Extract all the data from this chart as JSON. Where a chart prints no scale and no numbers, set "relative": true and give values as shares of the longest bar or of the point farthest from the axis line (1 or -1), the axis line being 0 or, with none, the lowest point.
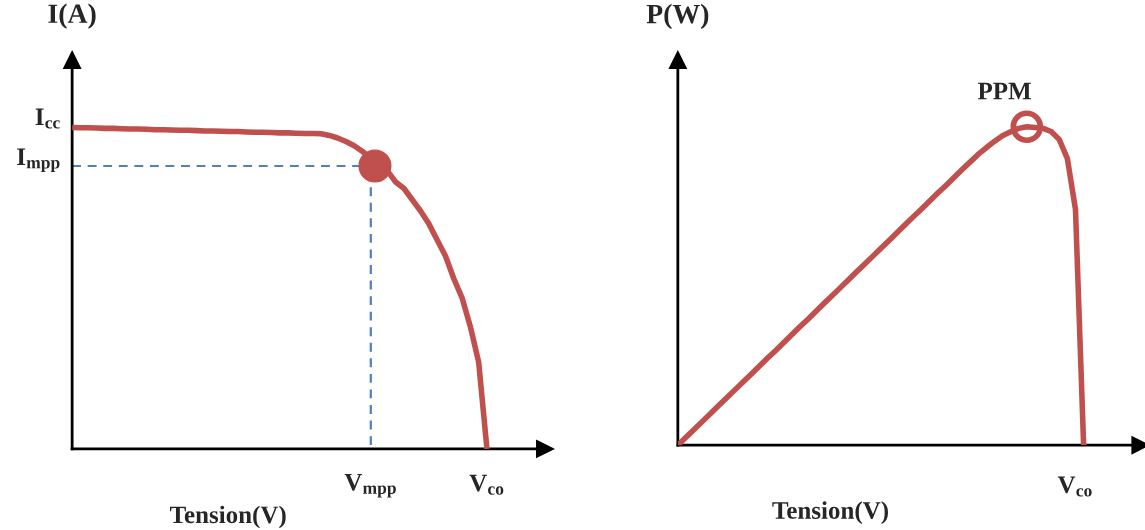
{
  "chart_data": [
    {
      "type": "line",
      "relative": true,
      "xlabel": "Tension(V)",
      "ylabel": "I(A)",
      "tick_labels": "x",
      "categories": [
        null,
        null,
        null,
        null,
        null,
        null,
        null,
        null,
        null,
        null,
        null,
        null,
        null,
        null,
        null,
        null,
        null,
        null,
        null,
        null,
        null,
        null,
        null,
        null,
        null,
        null,
        null,
        null,
        null,
        null,
        null,
        null,
        null,
        null,
        null,
        null,
        "V$_{mpp}$",
        null,
        null,
        null,
        null,
        null,
        null,
        null,
        null,
        null,
        null,
        null,
        null,
        null,
        "V$_{co}$"
      ],
      "annotations": [
        "I$_{cc}$"
      ],
      "ref_lines": [
        {
          "axis": "y",
          "value": 0.88,
          "label": "I$_{mpp}$",
          "color": "#4f81bd",
          "line_style": "dashed"
        },
        {
          "axis": "x",
          "value": "V$_{mpp}$",
          "color": "#4f81bd",
          "line_style": "dashed"
        }
      ],
      "series": [
        {
          "color": "#c0504d",
          "line_style": "solid",
          "values": [
            1.0,
            0.999,
            0.999,
            0.998,
            0.997,
            0.997,
            0.996,
            0.995,
            0.995,
            0.994,
            0.993,
            0.993,
            0.992,
            0.991,
            0.991,
            0.99,
            0.989,
            0.989,
            0.988,
            0.987,
            0.987,
            0.986,
            0.985,
            0.985,
            0.984,
            0.983,
            0.983,
            0.982,
            0.981,
            0.981,
            0.98,
            0.975,
            0.967,
            0.956,
            0.943,
            0.925,
            0.904,
            0.884,
            0.865,
            0.83,
            0.81,
            0.775,
            0.74,
            0.7,
            0.65,
            0.6,
            0.53,
            0.47,
            0.38,
            0.27,
            0
          ]
        }
      ]
    },
    {
      "type": "line",
      "relative": true,
      "xlabel": "Tension(V)",
      "ylabel": "P(W)",
      "tick_labels": false,
      "categories": [
        null,
        null,
        null,
        null,
        null,
        null,
        null,
        null,
        null,
        null,
        null,
        null,
        null,
        null,
        null,
        null,
        null,
        null,
        null,
        null,
        null,
        null,
        null,
        null,
        null,
        null,
        null,
        null,
        null,
        null,
        null,
        null,
        null,
        null,
        null,
        null,
        null,
        null,
        null,
        null,
        null,
        null,
        null,
        null,
        null,
        null,
        null,
        null,
        null,
        null,
        null
      ],
      "annotations": [
        "PPM",
        "V$_{co}$"
      ],
      "series": [
        {
          "color": "#c0504d",
          "line_style": "solid",
          "values": [
            0,
            0.025,
            0.049,
            0.074,
            0.099,
            0.124,
            0.148,
            0.173,
            0.198,
            0.222,
            0.247,
            0.272,
            0.296,
            0.321,
            0.346,
            0.371,
            0.395,
            0.42,
            0.445,
            0.469,
            0.494,
            0.519,
            0.544,
            0.568,
            0.593,
            0.618,
            0.642,
            0.667,
            0.692,
            0.717,
            0.741,
            0.766,
            0.791,
            0.815,
            0.84,
            0.865,
            0.889,
            0.913,
            0.934,
            0.954,
            0.972,
            0.984,
            0.995,
            1.0,
            0.998,
            0.995,
            0.985,
            0.96,
            0.9,
            0.74,
            0
          ]
        }
      ]
    }
  ]
}
